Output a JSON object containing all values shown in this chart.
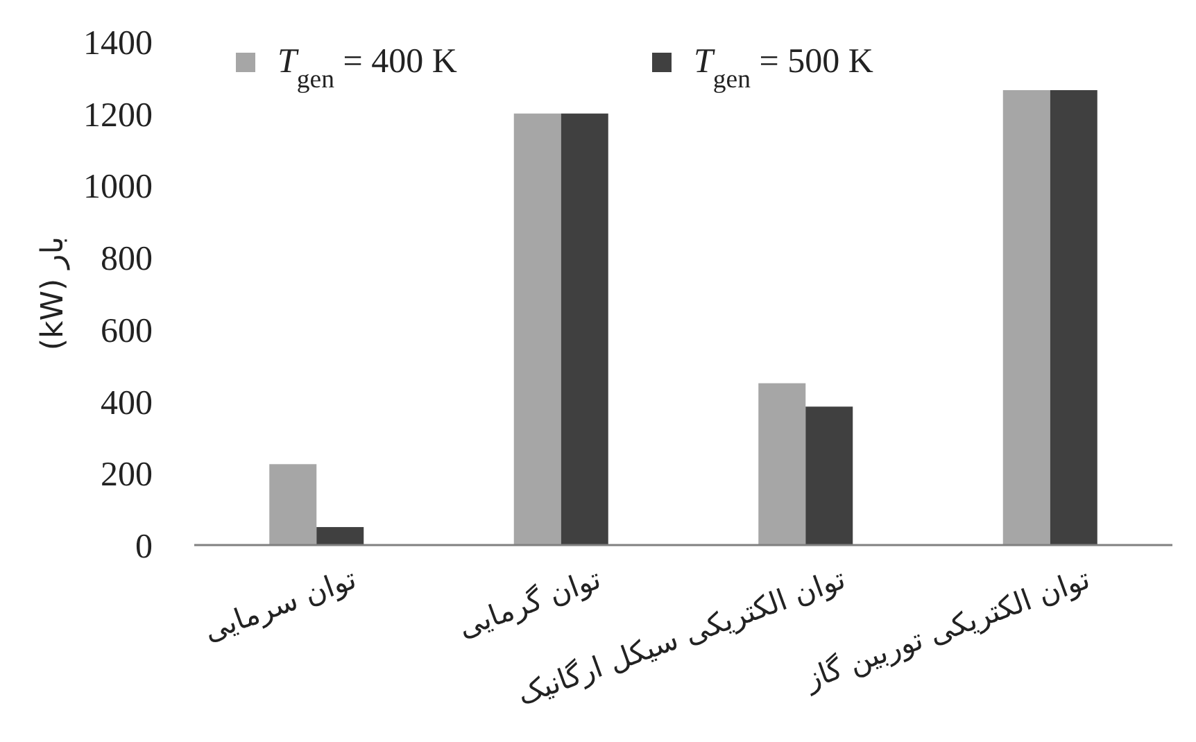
{
  "chart_data": {
    "type": "bar",
    "ylabel": "بار (kW)",
    "categories": [
      "توان سرمایی",
      "توان گرمایی",
      "توان الکتریکی سیکل ارگانیک",
      "توان الکتریکی توربین گاز"
    ],
    "series": [
      {
        "name": "*T*$_{gen}$ = 400 K",
        "color": "#a6a6a6",
        "values": [
          225,
          1200,
          450,
          1265
        ]
      },
      {
        "name": "*T*$_{gen}$ = 500 K",
        "color": "#404040",
        "values": [
          50,
          1200,
          385,
          1265
        ]
      }
    ],
    "ylim": [
      0,
      1400
    ],
    "yticks": [
      0,
      200,
      400,
      600,
      800,
      1000,
      1200,
      1400
    ],
    "grid": false,
    "legend": "top"
  }
}
